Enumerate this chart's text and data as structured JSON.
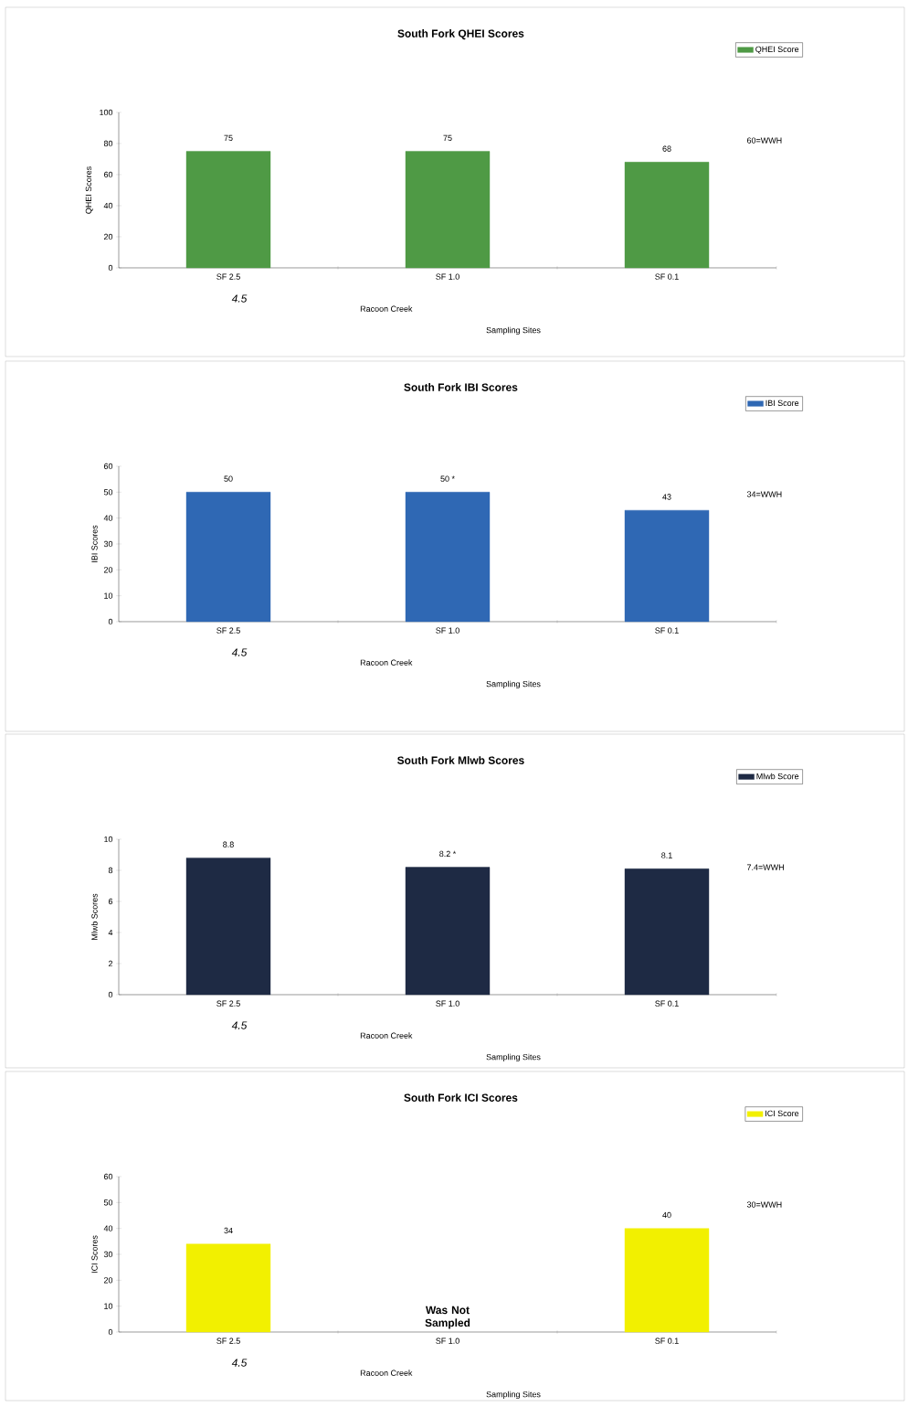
{
  "chart_data": [
    {
      "type": "bar",
      "title": "South Fork QHEI Scores",
      "xlabel": "Sampling Sites",
      "ylabel": "QHEI Scores",
      "categories": [
        "SF 2.5",
        "SF 1.0",
        "SF 0.1"
      ],
      "series": [
        {
          "name": "QHEI Score",
          "color": "#4f9a45",
          "values": [
            75,
            75,
            68
          ]
        }
      ],
      "ylim": [
        0,
        100
      ],
      "yticks": [
        0,
        20,
        40,
        60,
        80,
        100
      ],
      "data_labels": true,
      "legend": "top right",
      "annotations": [
        "4.5",
        "Racoon Creek",
        "60=WWH"
      ]
    },
    {
      "type": "bar",
      "title": "South Fork IBI Scores",
      "xlabel": "Sampling Sites",
      "ylabel": "IBI Scores",
      "categories": [
        "SF 2.5",
        "SF 1.0",
        "SF 0.1"
      ],
      "series": [
        {
          "name": "IBI Score",
          "color": "#2f68b4",
          "values": [
            50,
            50,
            43
          ],
          "value_labels": [
            "50",
            "50 *",
            "43"
          ]
        }
      ],
      "ylim": [
        0,
        60
      ],
      "yticks": [
        0,
        10,
        20,
        30,
        40,
        50,
        60
      ],
      "legend": "top right",
      "annotations": [
        "4.5",
        "Racoon Creek",
        "34=WWH"
      ]
    },
    {
      "type": "bar",
      "title": "South Fork Mlwb Scores",
      "xlabel": "Sampling Sites",
      "ylabel": "Mlwb Scores",
      "categories": [
        "SF 2.5",
        "SF 1.0",
        "SF 0.1"
      ],
      "series": [
        {
          "name": "Mlwb Score",
          "color": "#1e2a44",
          "values": [
            8.8,
            8.2,
            8.1
          ],
          "value_labels": [
            "8.8",
            "8.2 *",
            "8.1"
          ]
        }
      ],
      "ylim": [
        0,
        10
      ],
      "yticks": [
        0,
        2,
        4,
        6,
        8,
        10
      ],
      "legend": "top right",
      "annotations": [
        "4.5",
        "Racoon Creek",
        "7.4=WWH"
      ]
    },
    {
      "type": "bar",
      "title": "South Fork ICI Scores",
      "xlabel": "Sampling Sites",
      "ylabel": "ICI Scores",
      "categories": [
        "SF 2.5",
        "SF 1.0",
        "SF 0.1"
      ],
      "series": [
        {
          "name": "ICI Score",
          "color": "#f2f000",
          "values": [
            34,
            null,
            40
          ]
        }
      ],
      "ylim": [
        0,
        60
      ],
      "yticks": [
        0,
        10,
        20,
        30,
        40,
        50,
        60
      ],
      "data_labels": true,
      "legend": "top right",
      "annotations": [
        "4.5",
        "Racoon Creek",
        "30=WWH",
        "Was Not Sampled"
      ]
    }
  ]
}
